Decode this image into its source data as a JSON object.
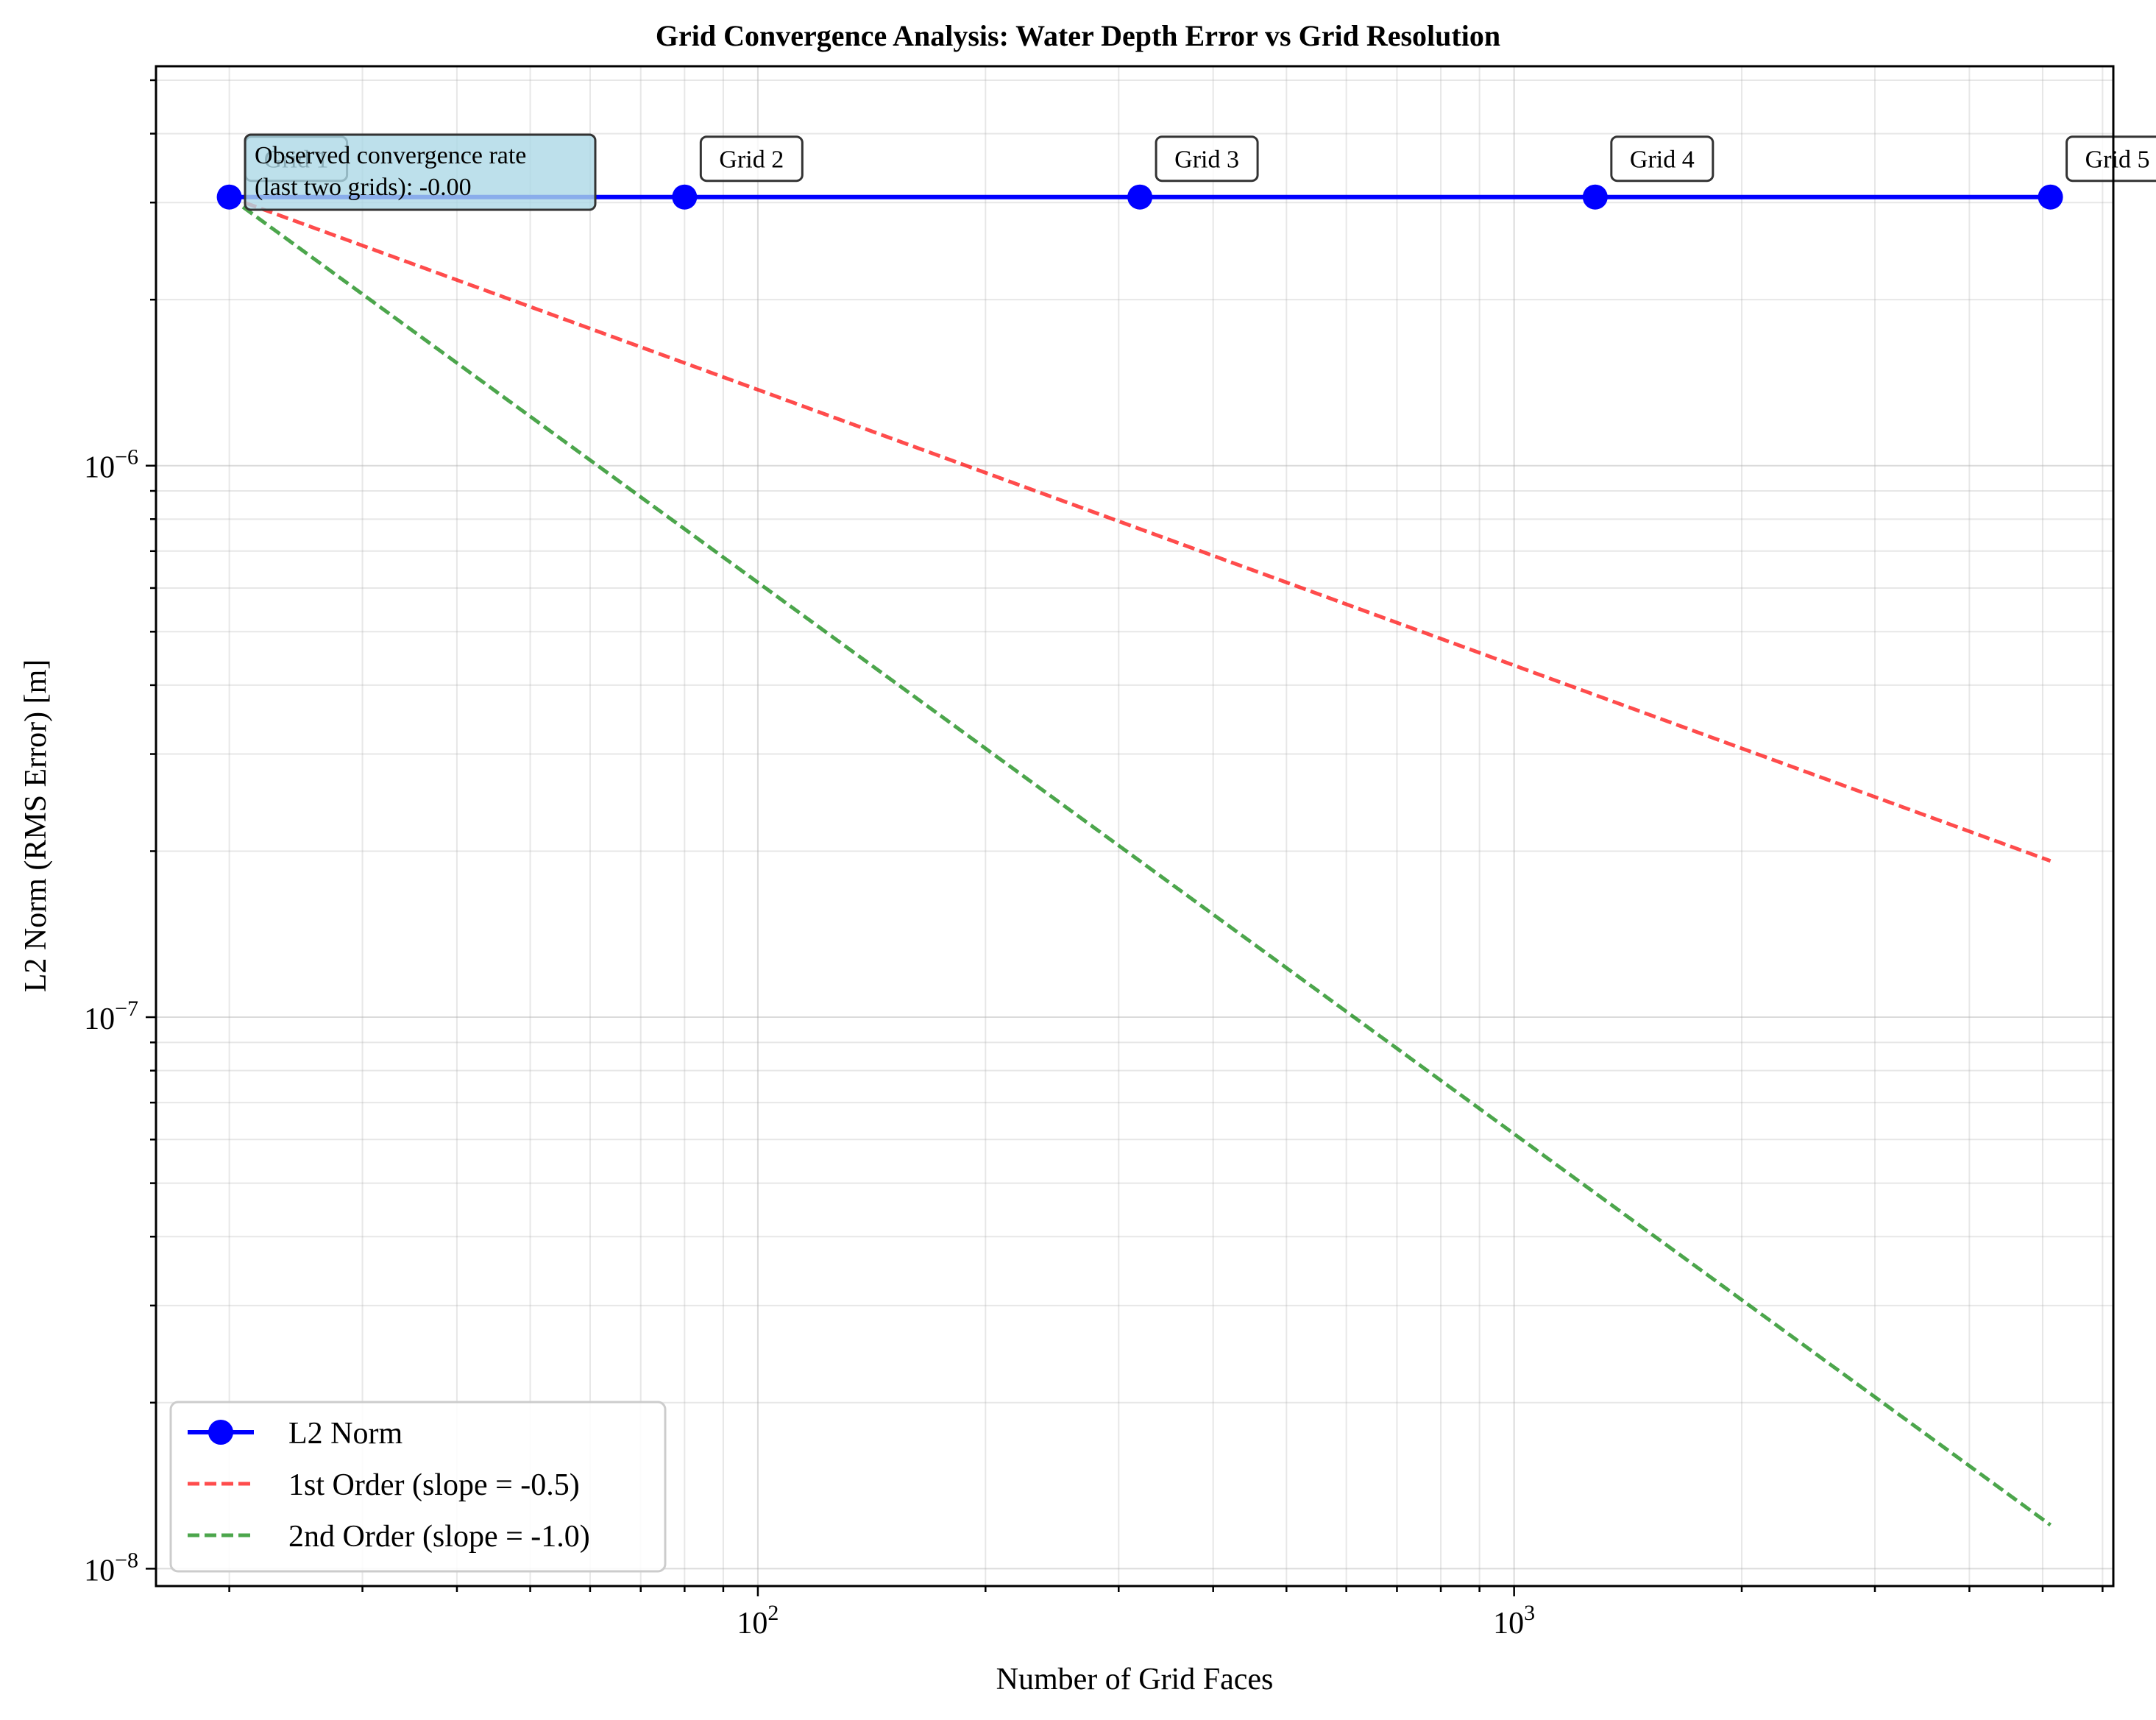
{
  "chart_data": {
    "type": "line",
    "title": "Grid Convergence Analysis: Water Depth Error vs Grid Resolution",
    "xlabel": "Number of Grid Faces",
    "ylabel": "L2 Norm (RMS Error) [m]",
    "xscale": "log",
    "yscale": "log",
    "xlim": [
      16,
      6200
    ],
    "ylim": [
      9.3e-09,
      5.3e-06
    ],
    "x_ticks": [
      {
        "value": 100,
        "base": "10",
        "exp": "2"
      },
      {
        "value": 1000,
        "base": "10",
        "exp": "3"
      }
    ],
    "y_ticks": [
      {
        "value": 1e-08,
        "base": "10",
        "exp": "−8"
      },
      {
        "value": 1e-07,
        "base": "10",
        "exp": "−7"
      },
      {
        "value": 1e-06,
        "base": "10",
        "exp": "−6"
      }
    ],
    "grid": true,
    "legend_position": "lower-left",
    "series": [
      {
        "name": "L2 Norm",
        "style": "solid-marker",
        "color": "#0000ff",
        "x": [
          20,
          80,
          320,
          1280,
          5120
        ],
        "y": [
          3.07e-06,
          3.07e-06,
          3.07e-06,
          3.07e-06,
          3.07e-06
        ]
      },
      {
        "name": "1st Order (slope = -0.5)",
        "style": "dashed",
        "color": "#ff0000",
        "x": [
          20,
          5120
        ],
        "y": [
          3.07e-06,
          1.92e-07
        ]
      },
      {
        "name": "2nd Order (slope = -1.0)",
        "style": "dashed",
        "color": "#008000",
        "x": [
          20,
          5120
        ],
        "y": [
          3.07e-06,
          1.2e-08
        ]
      }
    ],
    "point_labels": [
      "Grid 1",
      "Grid 2",
      "Grid 3",
      "Grid 4",
      "Grid 5"
    ],
    "annotation": {
      "line1": "Observed convergence rate",
      "line2": "(last two grids): -0.00"
    }
  }
}
